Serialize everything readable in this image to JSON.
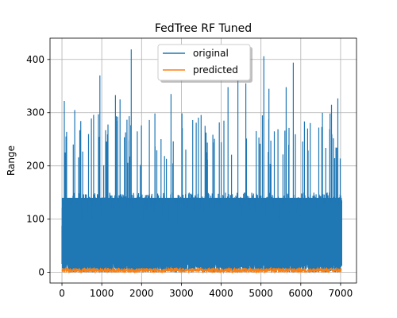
{
  "chart_data": {
    "type": "line",
    "title": "FedTree RF Tuned",
    "xlabel": "",
    "ylabel": "Range",
    "xlim": [
      -300,
      7400
    ],
    "ylim": [
      -20,
      440
    ],
    "x_ticks": [
      0,
      1000,
      2000,
      3000,
      4000,
      5000,
      6000,
      7000
    ],
    "y_ticks": [
      0,
      100,
      200,
      300,
      400
    ],
    "grid": true,
    "legend_position": "top-center",
    "x_range": [
      0,
      7030
    ],
    "series": [
      {
        "name": "original",
        "color": "#1f77b4",
        "description_values": {
          "typical_band_max": 150,
          "frequent_peaks_min": 200,
          "frequent_peaks_max": 300,
          "baseline_min": 0
        },
        "notable_peaks": [
          {
            "x": 60,
            "y": 322
          },
          {
            "x": 320,
            "y": 305
          },
          {
            "x": 950,
            "y": 370
          },
          {
            "x": 1345,
            "y": 333
          },
          {
            "x": 1460,
            "y": 325
          },
          {
            "x": 1740,
            "y": 419
          },
          {
            "x": 2740,
            "y": 335
          },
          {
            "x": 4170,
            "y": 348
          },
          {
            "x": 4420,
            "y": 380
          },
          {
            "x": 4620,
            "y": 355
          },
          {
            "x": 5070,
            "y": 406
          },
          {
            "x": 5200,
            "y": 345
          },
          {
            "x": 5630,
            "y": 348
          },
          {
            "x": 5810,
            "y": 394
          },
          {
            "x": 6770,
            "y": 315
          },
          {
            "x": 6930,
            "y": 327
          }
        ]
      },
      {
        "name": "predicted",
        "color": "#ff7f0e",
        "description_values": {
          "typical_min": 0,
          "typical_max": 8
        }
      }
    ]
  }
}
